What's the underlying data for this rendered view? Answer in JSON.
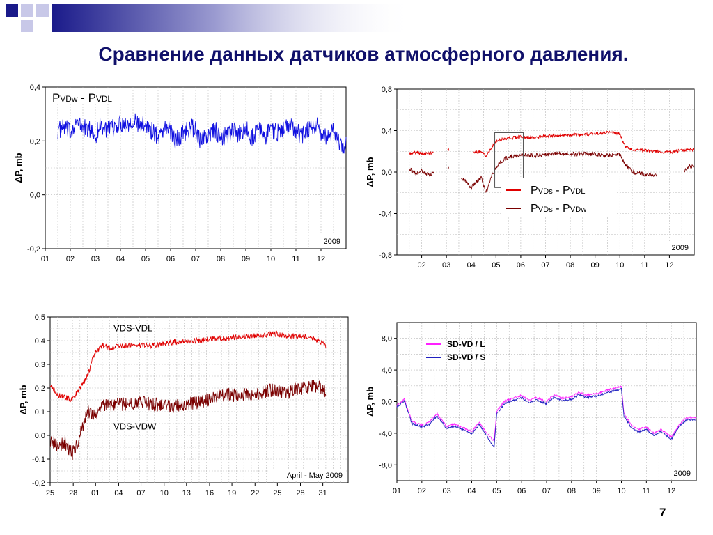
{
  "slide": {
    "title": "Сравнение данных датчиков атмосферного давления.",
    "page_number": "7",
    "colors": {
      "title": "#10106a",
      "deco_dark": "#1a1a8a",
      "deco_light": "#c8c8e8"
    }
  },
  "chart_data": [
    {
      "type": "line",
      "title": "",
      "xlabel": "",
      "ylabel": "ΔP, mb",
      "ylim": [
        -0.2,
        0.4
      ],
      "yticks": [
        "0,4",
        "0,2",
        "0,0",
        "-0,2"
      ],
      "ytick_values": [
        0.4,
        0.2,
        0.0,
        -0.2
      ],
      "xlim": [
        0,
        12
      ],
      "xticks": [
        "01",
        "02",
        "03",
        "04",
        "05",
        "06",
        "07",
        "08",
        "09",
        "10",
        "11",
        "12"
      ],
      "xtick_values": [
        0,
        1,
        2,
        3,
        4,
        5,
        6,
        7,
        8,
        9,
        10,
        11
      ],
      "grid": true,
      "annotation": "2009",
      "labels": [
        {
          "main": "P",
          "sub": "VDw",
          "sep": " - ",
          "main2": "P",
          "sub2": "VDL"
        }
      ],
      "series": [
        {
          "color": "#1010e0",
          "x": [
            0.5,
            0.8,
            1.0,
            1.2,
            1.5,
            1.8,
            2.0,
            2.2,
            2.5,
            2.8,
            3.0,
            3.2,
            3.5,
            3.8,
            4.0,
            4.2,
            4.5,
            4.8,
            5.0,
            5.2,
            5.5,
            5.8,
            6.0,
            6.2,
            6.5,
            6.8,
            7.0,
            7.2,
            7.5,
            7.8,
            8.0,
            8.2,
            8.5,
            8.8,
            9.0,
            9.2,
            9.5,
            9.8,
            10.0,
            10.2,
            10.5,
            10.8,
            11.0,
            11.3,
            11.5,
            11.8,
            12.0
          ],
          "y": [
            0.24,
            0.25,
            0.23,
            0.27,
            0.25,
            0.24,
            0.22,
            0.26,
            0.24,
            0.25,
            0.27,
            0.26,
            0.28,
            0.25,
            0.27,
            0.24,
            0.22,
            0.25,
            0.24,
            0.2,
            0.23,
            0.25,
            0.24,
            0.2,
            0.22,
            0.24,
            0.2,
            0.22,
            0.24,
            0.22,
            0.25,
            0.21,
            0.24,
            0.22,
            0.25,
            0.23,
            0.24,
            0.26,
            0.24,
            0.22,
            0.25,
            0.26,
            0.23,
            0.21,
            0.25,
            0.17,
            0.2
          ],
          "noise": 0.035
        }
      ]
    },
    {
      "type": "line",
      "title": "",
      "xlabel": "",
      "ylabel": "ΔP, mb",
      "ylim": [
        -0.8,
        0.8
      ],
      "yticks": [
        "0,8",
        "0,4",
        "0,0",
        "-0,4",
        "-0,8"
      ],
      "ytick_values": [
        0.8,
        0.4,
        0.0,
        -0.4,
        -0.8
      ],
      "xlim": [
        0,
        12
      ],
      "xticks": [
        "02",
        "03",
        "04",
        "05",
        "06",
        "07",
        "08",
        "09",
        "10",
        "11",
        "12"
      ],
      "xtick_values": [
        1,
        2,
        3,
        4,
        5,
        6,
        7,
        8,
        9,
        10,
        11
      ],
      "grid": true,
      "annotation": "2009",
      "highlight_box": {
        "x": [
          3.95,
          5.1
        ],
        "y": [
          -0.15,
          0.38
        ]
      },
      "legend": [
        {
          "main": "P",
          "sub": "VDs",
          "sep": " - ",
          "main2": "P",
          "sub2": "VDL",
          "color": "#e00000"
        },
        {
          "main": "P",
          "sub": "VDs",
          "sep": " - ",
          "main2": "P",
          "sub2": "VDw",
          "color": "#7a0000"
        }
      ],
      "series": [
        {
          "color": "#e00000",
          "segments": [
            {
              "x": [
                0.5,
                0.8,
                1.0,
                1.3,
                1.5
              ],
              "y": [
                0.18,
                0.19,
                0.18,
                0.18,
                0.19
              ]
            },
            {
              "x": [
                2.05,
                2.1
              ],
              "y": [
                0.22,
                0.21
              ]
            },
            {
              "x": [
                3.1,
                3.4,
                3.6,
                3.8,
                4.0,
                4.3,
                4.6,
                5.0,
                5.5,
                6.0,
                6.5,
                7.0,
                7.5,
                8.0,
                8.5,
                9.0,
                9.2,
                9.5,
                10.0,
                10.5,
                11.0,
                11.5,
                12.0
              ],
              "y": [
                0.18,
                0.2,
                0.16,
                0.23,
                0.3,
                0.32,
                0.33,
                0.34,
                0.33,
                0.35,
                0.35,
                0.36,
                0.36,
                0.37,
                0.38,
                0.37,
                0.25,
                0.22,
                0.21,
                0.2,
                0.19,
                0.21,
                0.22
              ]
            }
          ],
          "noise": 0.015
        },
        {
          "color": "#7a0000",
          "segments": [
            {
              "x": [
                0.5,
                0.8,
                1.0,
                1.3,
                1.5
              ],
              "y": [
                0.03,
                -0.02,
                0.01,
                -0.03,
                0.0
              ]
            },
            {
              "x": [
                2.05,
                2.1
              ],
              "y": [
                0.05,
                0.02
              ]
            },
            {
              "x": [
                2.6,
                2.8,
                3.0,
                3.2,
                3.4,
                3.6,
                3.8,
                4.0,
                4.3,
                4.6,
                5.0,
                5.5,
                6.0,
                6.5,
                7.0,
                7.5,
                8.0,
                8.5,
                9.0,
                9.2,
                9.5,
                10.0,
                10.5
              ],
              "y": [
                -0.05,
                -0.1,
                -0.15,
                -0.1,
                -0.05,
                -0.2,
                -0.05,
                0.05,
                0.12,
                0.15,
                0.17,
                0.16,
                0.17,
                0.18,
                0.17,
                0.18,
                0.17,
                0.16,
                0.17,
                0.08,
                0.0,
                -0.02,
                -0.03
              ]
            },
            {
              "x": [
                11.6,
                11.8,
                12.0
              ],
              "y": [
                0.02,
                0.05,
                0.06
              ]
            }
          ],
          "noise": 0.02
        }
      ]
    },
    {
      "type": "line",
      "title": "",
      "xlabel": "",
      "ylabel": "ΔP, mb",
      "ylim": [
        -0.2,
        0.5
      ],
      "yticks": [
        "0,5",
        "0,4",
        "0,3",
        "0,2",
        "0,1",
        "0,0",
        "-0,1",
        "-0,2"
      ],
      "ytick_values": [
        0.5,
        0.4,
        0.3,
        0.2,
        0.1,
        0.0,
        -0.1,
        -0.2
      ],
      "xlim": [
        0,
        40
      ],
      "xticks": [
        "25",
        "28",
        "01",
        "04",
        "07",
        "10",
        "13",
        "16",
        "19",
        "22",
        "25",
        "28",
        "31"
      ],
      "xtick_values": [
        0,
        3.1,
        6.1,
        9.2,
        12.2,
        15.3,
        18.3,
        21.4,
        24.4,
        27.5,
        30.5,
        33.6,
        36.6
      ],
      "grid": true,
      "annotation": "April - May 2009",
      "labels": [
        {
          "text": "VDS-VDL",
          "at": [
            8.5,
            0.44
          ]
        },
        {
          "text": "VDS-VDW",
          "at": [
            8.5,
            0.025
          ]
        }
      ],
      "series": [
        {
          "color": "#e00000",
          "x": [
            0,
            1,
            2,
            3,
            4,
            5,
            6,
            7,
            8,
            10,
            12,
            14,
            16,
            18,
            20,
            22,
            24,
            26,
            28,
            30,
            32,
            34,
            36,
            37
          ],
          "y": [
            0.22,
            0.17,
            0.16,
            0.15,
            0.2,
            0.25,
            0.35,
            0.38,
            0.37,
            0.38,
            0.38,
            0.38,
            0.39,
            0.4,
            0.4,
            0.41,
            0.41,
            0.42,
            0.42,
            0.43,
            0.42,
            0.42,
            0.4,
            0.38
          ],
          "noise": 0.012
        },
        {
          "color": "#7a0000",
          "x": [
            0,
            1,
            2,
            3,
            4,
            5,
            6,
            7,
            8,
            10,
            12,
            14,
            16,
            18,
            20,
            22,
            24,
            26,
            28,
            30,
            32,
            34,
            36,
            37
          ],
          "y": [
            -0.02,
            -0.05,
            -0.03,
            -0.08,
            0.0,
            0.1,
            0.08,
            0.12,
            0.13,
            0.13,
            0.14,
            0.13,
            0.12,
            0.13,
            0.14,
            0.16,
            0.17,
            0.17,
            0.18,
            0.19,
            0.18,
            0.2,
            0.21,
            0.18
          ],
          "noise": 0.03
        }
      ]
    },
    {
      "type": "line",
      "title": "",
      "xlabel": "",
      "ylabel": "ΔP, mb",
      "ylim": [
        -10,
        10
      ],
      "yticks": [
        "8,0",
        "4,0",
        "0,0",
        "-4,0",
        "-8,0"
      ],
      "ytick_values": [
        8,
        4,
        0,
        -4,
        -8
      ],
      "xlim": [
        0,
        12
      ],
      "xticks": [
        "01",
        "02",
        "03",
        "04",
        "05",
        "06",
        "07",
        "08",
        "09",
        "10",
        "11",
        "12"
      ],
      "xtick_values": [
        0,
        1,
        2,
        3,
        4,
        5,
        6,
        7,
        8,
        9,
        10,
        11
      ],
      "grid": true,
      "annotation": "2009",
      "legend": [
        {
          "text": "SD-VD / L",
          "color": "#ff20ff"
        },
        {
          "text": "SD-VD / S",
          "color": "#2020c0"
        }
      ],
      "series": [
        {
          "color": "#ff20ff",
          "x": [
            0,
            0.3,
            0.6,
            1.0,
            1.3,
            1.6,
            2.0,
            2.3,
            2.6,
            3.0,
            3.3,
            3.6,
            3.9,
            4.0,
            4.3,
            4.6,
            5.0,
            5.3,
            5.6,
            6.0,
            6.3,
            6.6,
            7.0,
            7.3,
            7.6,
            8.0,
            8.3,
            8.6,
            9.0,
            9.1,
            9.4,
            9.7,
            10.0,
            10.3,
            10.6,
            11.0,
            11.3,
            11.6,
            12.0
          ],
          "y": [
            -0.5,
            0.3,
            -2.5,
            -3.0,
            -2.6,
            -1.5,
            -3.2,
            -2.8,
            -3.2,
            -3.8,
            -2.6,
            -4.0,
            -5.0,
            -1.2,
            0.0,
            0.4,
            0.8,
            0.2,
            0.5,
            0.0,
            0.9,
            0.4,
            0.6,
            1.2,
            0.8,
            1.0,
            1.3,
            1.6,
            2.0,
            -1.5,
            -3.0,
            -3.5,
            -3.2,
            -4.0,
            -3.5,
            -4.5,
            -3.0,
            -2.0,
            -2.0
          ],
          "noise": 0.12
        },
        {
          "color": "#2020c0",
          "x": [
            0,
            0.3,
            0.6,
            1.0,
            1.3,
            1.6,
            2.0,
            2.3,
            2.6,
            3.0,
            3.3,
            3.6,
            3.9,
            4.0,
            4.3,
            4.6,
            5.0,
            5.3,
            5.6,
            6.0,
            6.3,
            6.6,
            7.0,
            7.3,
            7.6,
            8.0,
            8.3,
            8.6,
            9.0,
            9.1,
            9.4,
            9.7,
            10.0,
            10.3,
            10.6,
            11.0,
            11.3,
            11.6,
            12.0
          ],
          "y": [
            -0.7,
            0.1,
            -2.8,
            -3.2,
            -2.9,
            -1.8,
            -3.4,
            -3.1,
            -3.5,
            -4.1,
            -2.9,
            -4.3,
            -5.8,
            -1.6,
            -0.3,
            0.1,
            0.5,
            -0.1,
            0.2,
            -0.3,
            0.6,
            0.1,
            0.3,
            0.9,
            0.5,
            0.7,
            1.0,
            1.3,
            1.6,
            -1.8,
            -3.3,
            -3.8,
            -3.5,
            -4.3,
            -3.8,
            -4.8,
            -3.2,
            -2.3,
            -2.3
          ],
          "noise": 0.12
        }
      ]
    }
  ]
}
